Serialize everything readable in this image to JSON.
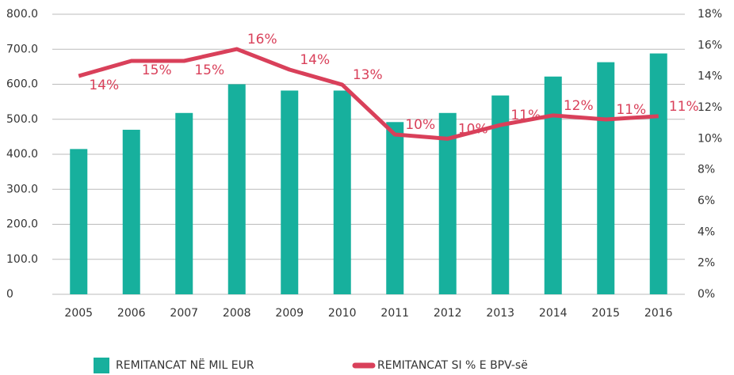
{
  "chart_data": {
    "type": "bar-line",
    "categories": [
      "2005",
      "2006",
      "2007",
      "2008",
      "2009",
      "2010",
      "2011",
      "2012",
      "2013",
      "2014",
      "2015",
      "2016"
    ],
    "series": [
      {
        "name": "REMITANCAT NË MIL EUR",
        "type": "bar",
        "color": "#17b09d",
        "values": [
          415,
          470,
          518,
          600,
          582,
          582,
          492,
          518,
          568,
          622,
          663,
          688
        ]
      },
      {
        "name": "REMITANCAT SI % E BPV-së",
        "type": "line",
        "axis": "y2",
        "color": "#d9405a",
        "values": [
          14.03,
          15.0,
          15.0,
          15.76,
          14.44,
          13.47,
          10.27,
          10.0,
          10.88,
          11.5,
          11.24,
          11.45
        ],
        "value_labels": [
          "14%",
          "15%",
          "15%",
          "16%",
          "14%",
          "13%",
          "10%",
          "10%",
          "11%",
          "12%",
          "11%",
          "11%"
        ]
      }
    ],
    "ylim": [
      0,
      800
    ],
    "yticks": [
      0,
      {
        "value": 100,
        "label": "100.0"
      },
      {
        "value": 200,
        "label": "200.0"
      },
      {
        "value": 300,
        "label": "300.0"
      },
      {
        "value": 400,
        "label": "400.0"
      },
      {
        "value": 500,
        "label": "500.0"
      },
      {
        "value": 600,
        "label": "600.0"
      },
      {
        "value": 700,
        "label": "700.0"
      },
      {
        "value": 800,
        "label": "800.0"
      }
    ],
    "y2lim": [
      0,
      18
    ],
    "y2ticks": [
      {
        "value": 0,
        "label": "0%"
      },
      {
        "value": 2,
        "label": "2%"
      },
      {
        "value": 4,
        "label": "4%"
      },
      {
        "value": 6,
        "label": "6%"
      },
      {
        "value": 8,
        "label": "8%"
      },
      {
        "value": 10,
        "label": "10%"
      },
      {
        "value": 12,
        "label": "12%"
      },
      {
        "value": 14,
        "label": "14%"
      },
      {
        "value": 16,
        "label": "16%"
      },
      {
        "value": 18,
        "label": "18%"
      }
    ],
    "grid": true
  }
}
